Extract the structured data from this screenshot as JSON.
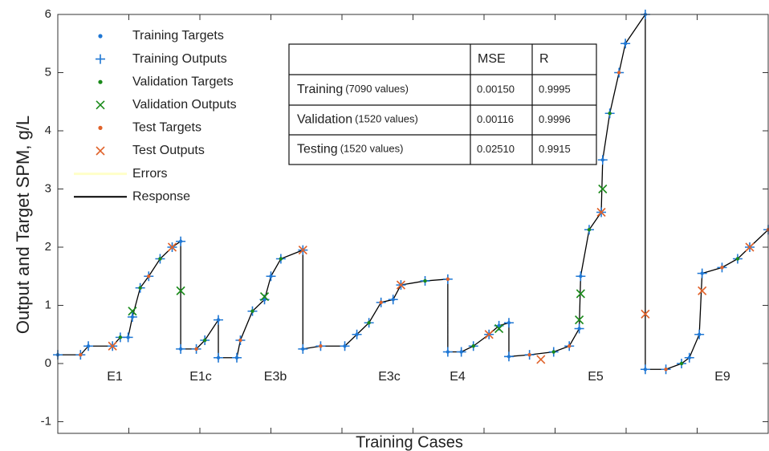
{
  "chart_data": {
    "type": "line",
    "xlabel": "Training Cases",
    "ylabel": "Output and Target SPM, g/L",
    "xlim": [
      0,
      10
    ],
    "xticks": [
      0,
      1,
      2,
      3,
      4,
      5,
      6,
      7,
      8,
      9,
      10
    ],
    "ylim": [
      -1.2,
      6
    ],
    "yticks": [
      -1,
      0,
      1,
      2,
      3,
      4,
      5,
      6
    ],
    "legend": "upper left",
    "series": [
      {
        "name": "Training Targets",
        "color": "#1f77d4",
        "marker": "dot",
        "x": [
          0,
          0.32,
          0.43,
          0.77,
          0.88,
          0.99,
          1.05,
          1.16,
          1.28,
          1.44,
          1.61,
          1.73,
          1.73,
          1.95,
          2.07,
          2.26,
          2.26,
          2.52,
          2.57,
          2.74,
          2.91,
          3.0,
          3.14,
          3.45,
          3.45,
          3.7,
          4.04,
          4.21,
          4.38,
          4.55,
          4.72,
          4.83,
          5.17,
          5.49,
          5.49,
          5.68,
          5.85,
          6.07,
          6.21,
          6.35,
          6.35,
          6.64,
          6.98,
          7.2,
          7.34,
          7.36,
          7.48,
          7.65,
          7.67,
          7.77,
          7.9,
          7.99,
          8.27,
          8.27,
          8.56,
          8.78,
          8.89,
          9.03,
          9.07,
          9.35,
          9.57,
          9.74,
          10
        ],
        "values": [
          0.15,
          0.15,
          0.3,
          0.3,
          0.45,
          0.45,
          0.8,
          1.3,
          1.5,
          1.8,
          2.0,
          2.1,
          0.25,
          0.25,
          0.4,
          0.75,
          0.1,
          0.1,
          0.4,
          0.9,
          1.1,
          1.5,
          1.8,
          1.95,
          0.25,
          0.3,
          0.3,
          0.5,
          0.7,
          1.05,
          1.1,
          1.35,
          1.42,
          1.45,
          0.2,
          0.2,
          0.3,
          0.5,
          0.65,
          0.7,
          0.12,
          0.15,
          0.2,
          0.3,
          0.6,
          1.5,
          2.3,
          2.6,
          3.5,
          4.3,
          5.0,
          5.5,
          6.0,
          -0.1,
          -0.1,
          0.0,
          0.1,
          0.5,
          1.55,
          1.65,
          1.8,
          2.0,
          2.3
        ]
      },
      {
        "name": "Training Outputs",
        "color": "#1f77d4",
        "marker": "plus",
        "x": [
          0,
          0.32,
          0.43,
          0.77,
          0.88,
          0.99,
          1.05,
          1.16,
          1.28,
          1.44,
          1.61,
          1.73,
          1.73,
          1.95,
          2.07,
          2.26,
          2.26,
          2.52,
          2.57,
          2.74,
          2.91,
          3.0,
          3.14,
          3.45,
          3.45,
          3.7,
          4.04,
          4.21,
          4.38,
          4.55,
          4.72,
          4.83,
          5.17,
          5.49,
          5.49,
          5.68,
          5.85,
          6.07,
          6.21,
          6.35,
          6.35,
          6.64,
          6.98,
          7.2,
          7.34,
          7.36,
          7.48,
          7.65,
          7.67,
          7.77,
          7.9,
          7.99,
          8.27,
          8.27,
          8.56,
          8.78,
          8.89,
          9.03,
          9.07,
          9.35,
          9.57,
          9.74,
          10
        ],
        "values": [
          0.15,
          0.15,
          0.3,
          0.3,
          0.45,
          0.45,
          0.8,
          1.3,
          1.5,
          1.8,
          2.0,
          2.1,
          0.25,
          0.25,
          0.4,
          0.75,
          0.1,
          0.1,
          0.4,
          0.9,
          1.1,
          1.5,
          1.8,
          1.95,
          0.25,
          0.3,
          0.3,
          0.5,
          0.7,
          1.05,
          1.1,
          1.35,
          1.42,
          1.45,
          0.2,
          0.2,
          0.3,
          0.5,
          0.65,
          0.7,
          0.12,
          0.15,
          0.2,
          0.3,
          0.6,
          1.5,
          2.3,
          2.6,
          3.5,
          4.3,
          5.0,
          5.5,
          6.0,
          -0.1,
          -0.1,
          0.0,
          0.1,
          0.5,
          1.55,
          1.65,
          1.8,
          2.0,
          2.3
        ]
      },
      {
        "name": "Validation Targets",
        "color": "#1a8a1a",
        "marker": "dot",
        "x": [
          0.88,
          1.16,
          1.44,
          2.07,
          2.74,
          3.14,
          4.38,
          5.17,
          5.85,
          6.98,
          7.48,
          7.77,
          8.78,
          9.57
        ],
        "values": [
          0.45,
          1.3,
          1.8,
          0.4,
          0.9,
          1.8,
          0.7,
          1.42,
          0.3,
          0.2,
          2.3,
          4.3,
          0.0,
          1.8
        ]
      },
      {
        "name": "Validation Outputs",
        "color": "#1a8a1a",
        "marker": "x",
        "x": [
          1.05,
          1.73,
          2.91,
          7.34,
          7.36,
          7.67,
          6.21
        ],
        "values": [
          0.9,
          1.25,
          1.15,
          0.75,
          1.2,
          3.0,
          0.6
        ]
      },
      {
        "name": "Test Targets",
        "color": "#e0622a",
        "marker": "dot",
        "x": [
          0.32,
          1.28,
          1.95,
          2.57,
          3.7,
          4.55,
          5.49,
          6.64,
          7.2,
          7.9,
          8.56,
          9.35,
          10
        ],
        "values": [
          0.15,
          1.5,
          0.25,
          0.4,
          0.3,
          1.05,
          1.45,
          0.15,
          0.3,
          5.0,
          -0.1,
          1.65,
          2.3
        ]
      },
      {
        "name": "Test Outputs",
        "color": "#e0622a",
        "marker": "x",
        "x": [
          0.77,
          1.61,
          3.45,
          4.83,
          6.07,
          6.8,
          7.65,
          8.27,
          9.07,
          9.74
        ],
        "values": [
          0.3,
          2.0,
          1.95,
          1.35,
          0.5,
          0.07,
          2.6,
          0.85,
          1.25,
          2.0
        ]
      },
      {
        "name": "Errors",
        "color": "#ffffc8",
        "marker": "line",
        "x": [],
        "values": []
      },
      {
        "name": "Response",
        "color": "#000000",
        "marker": "line",
        "x": [
          0,
          0.32,
          0.43,
          0.77,
          0.88,
          0.99,
          1.05,
          1.16,
          1.28,
          1.44,
          1.61,
          1.73,
          1.73,
          1.95,
          2.07,
          2.26,
          2.26,
          2.52,
          2.57,
          2.74,
          2.91,
          3.0,
          3.14,
          3.45,
          3.45,
          3.7,
          4.04,
          4.21,
          4.38,
          4.55,
          4.72,
          4.83,
          5.17,
          5.49,
          5.49,
          5.68,
          5.85,
          6.07,
          6.21,
          6.35,
          6.35,
          6.64,
          6.98,
          7.2,
          7.34,
          7.36,
          7.48,
          7.65,
          7.67,
          7.77,
          7.9,
          7.99,
          8.27,
          8.27,
          8.56,
          8.78,
          8.89,
          9.03,
          9.07,
          9.35,
          9.57,
          9.74,
          10
        ],
        "values": [
          0.15,
          0.15,
          0.3,
          0.3,
          0.45,
          0.45,
          0.8,
          1.3,
          1.5,
          1.8,
          2.0,
          2.1,
          0.25,
          0.25,
          0.4,
          0.75,
          0.1,
          0.1,
          0.4,
          0.9,
          1.1,
          1.5,
          1.8,
          1.95,
          0.25,
          0.3,
          0.3,
          0.5,
          0.7,
          1.05,
          1.1,
          1.35,
          1.42,
          1.45,
          0.2,
          0.2,
          0.3,
          0.5,
          0.65,
          0.7,
          0.12,
          0.15,
          0.2,
          0.3,
          0.6,
          1.5,
          2.3,
          2.6,
          3.5,
          4.3,
          5.0,
          5.5,
          6.0,
          -0.1,
          -0.1,
          0.0,
          0.1,
          0.5,
          1.55,
          1.65,
          1.8,
          2.0,
          2.3
        ]
      }
    ],
    "annotations": [
      "E1",
      "E1c",
      "E3b",
      "E3c",
      "E4",
      "E5",
      "E9"
    ],
    "table": {
      "header": [
        "MSE",
        "R"
      ],
      "rows": [
        {
          "name": "Training",
          "count": "(7090 values)",
          "cells": [
            "0.00150",
            "0.9995"
          ]
        },
        {
          "name": "Validation",
          "count": "(1520 values)",
          "cells": [
            "0.00116",
            "0.9996"
          ]
        },
        {
          "name": "Testing",
          "count": "(1520 values)",
          "cells": [
            "0.02510",
            "0.9915"
          ]
        }
      ]
    }
  }
}
